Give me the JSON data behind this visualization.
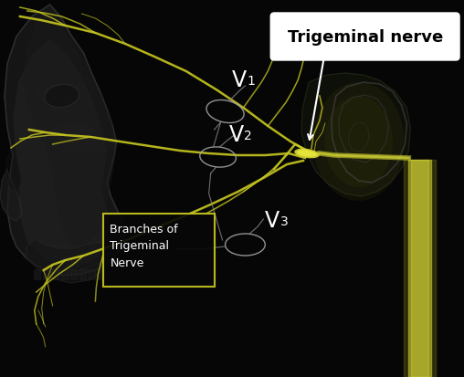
{
  "background_color": "#060606",
  "nerve_color": "#c8c820",
  "nerve_color_bright": "#d4d430",
  "nerve_glow": "#9a9a10",
  "label_color": "#ffffff",
  "box_edge_color": "#c8c820",
  "annotation_box_bg": "#ffffff",
  "annotation_box_text": "#000000",
  "title": "Trigeminal nerve",
  "label_v1": "V",
  "label_v1_sub": "1",
  "label_v2": "V",
  "label_v2_sub": "2",
  "label_v3": "V",
  "label_v3_sub": "3",
  "label_branches": "Branches of\nTrigeminal\nNerve",
  "skull_face": "#1e1e1e",
  "skull_edge": "#3c3c3c",
  "skull_glow": "#2a2a2a",
  "figsize": [
    5.08,
    4.13
  ],
  "dpi": 100
}
